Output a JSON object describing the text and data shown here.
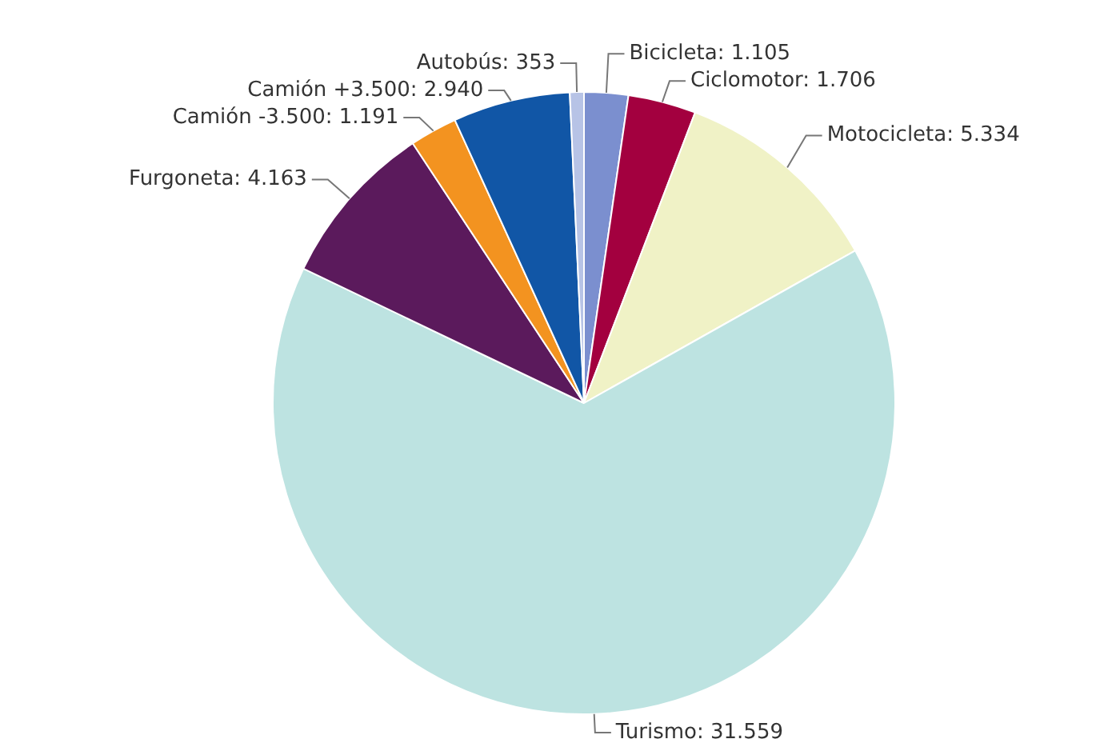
{
  "chart_data": {
    "type": "pie",
    "categories": [
      "Bicicleta",
      "Ciclomotor",
      "Motocicleta",
      "Turismo",
      "Furgoneta",
      "Camión -3.500",
      "Camión +3.500",
      "Autobús"
    ],
    "values": [
      1105,
      1706,
      5334,
      31559,
      4163,
      1191,
      2940,
      353
    ],
    "value_labels": [
      "1.105",
      "1.706",
      "5.334",
      "31.559",
      "4.163",
      "1.191",
      "2.940",
      "353"
    ],
    "colors": [
      "#7b8fcf",
      "#a3003f",
      "#f0f2c6",
      "#bde3e1",
      "#5b1a5c",
      "#f39320",
      "#1156a6",
      "#b7c3e6"
    ],
    "data_labels": true,
    "legend": false
  }
}
